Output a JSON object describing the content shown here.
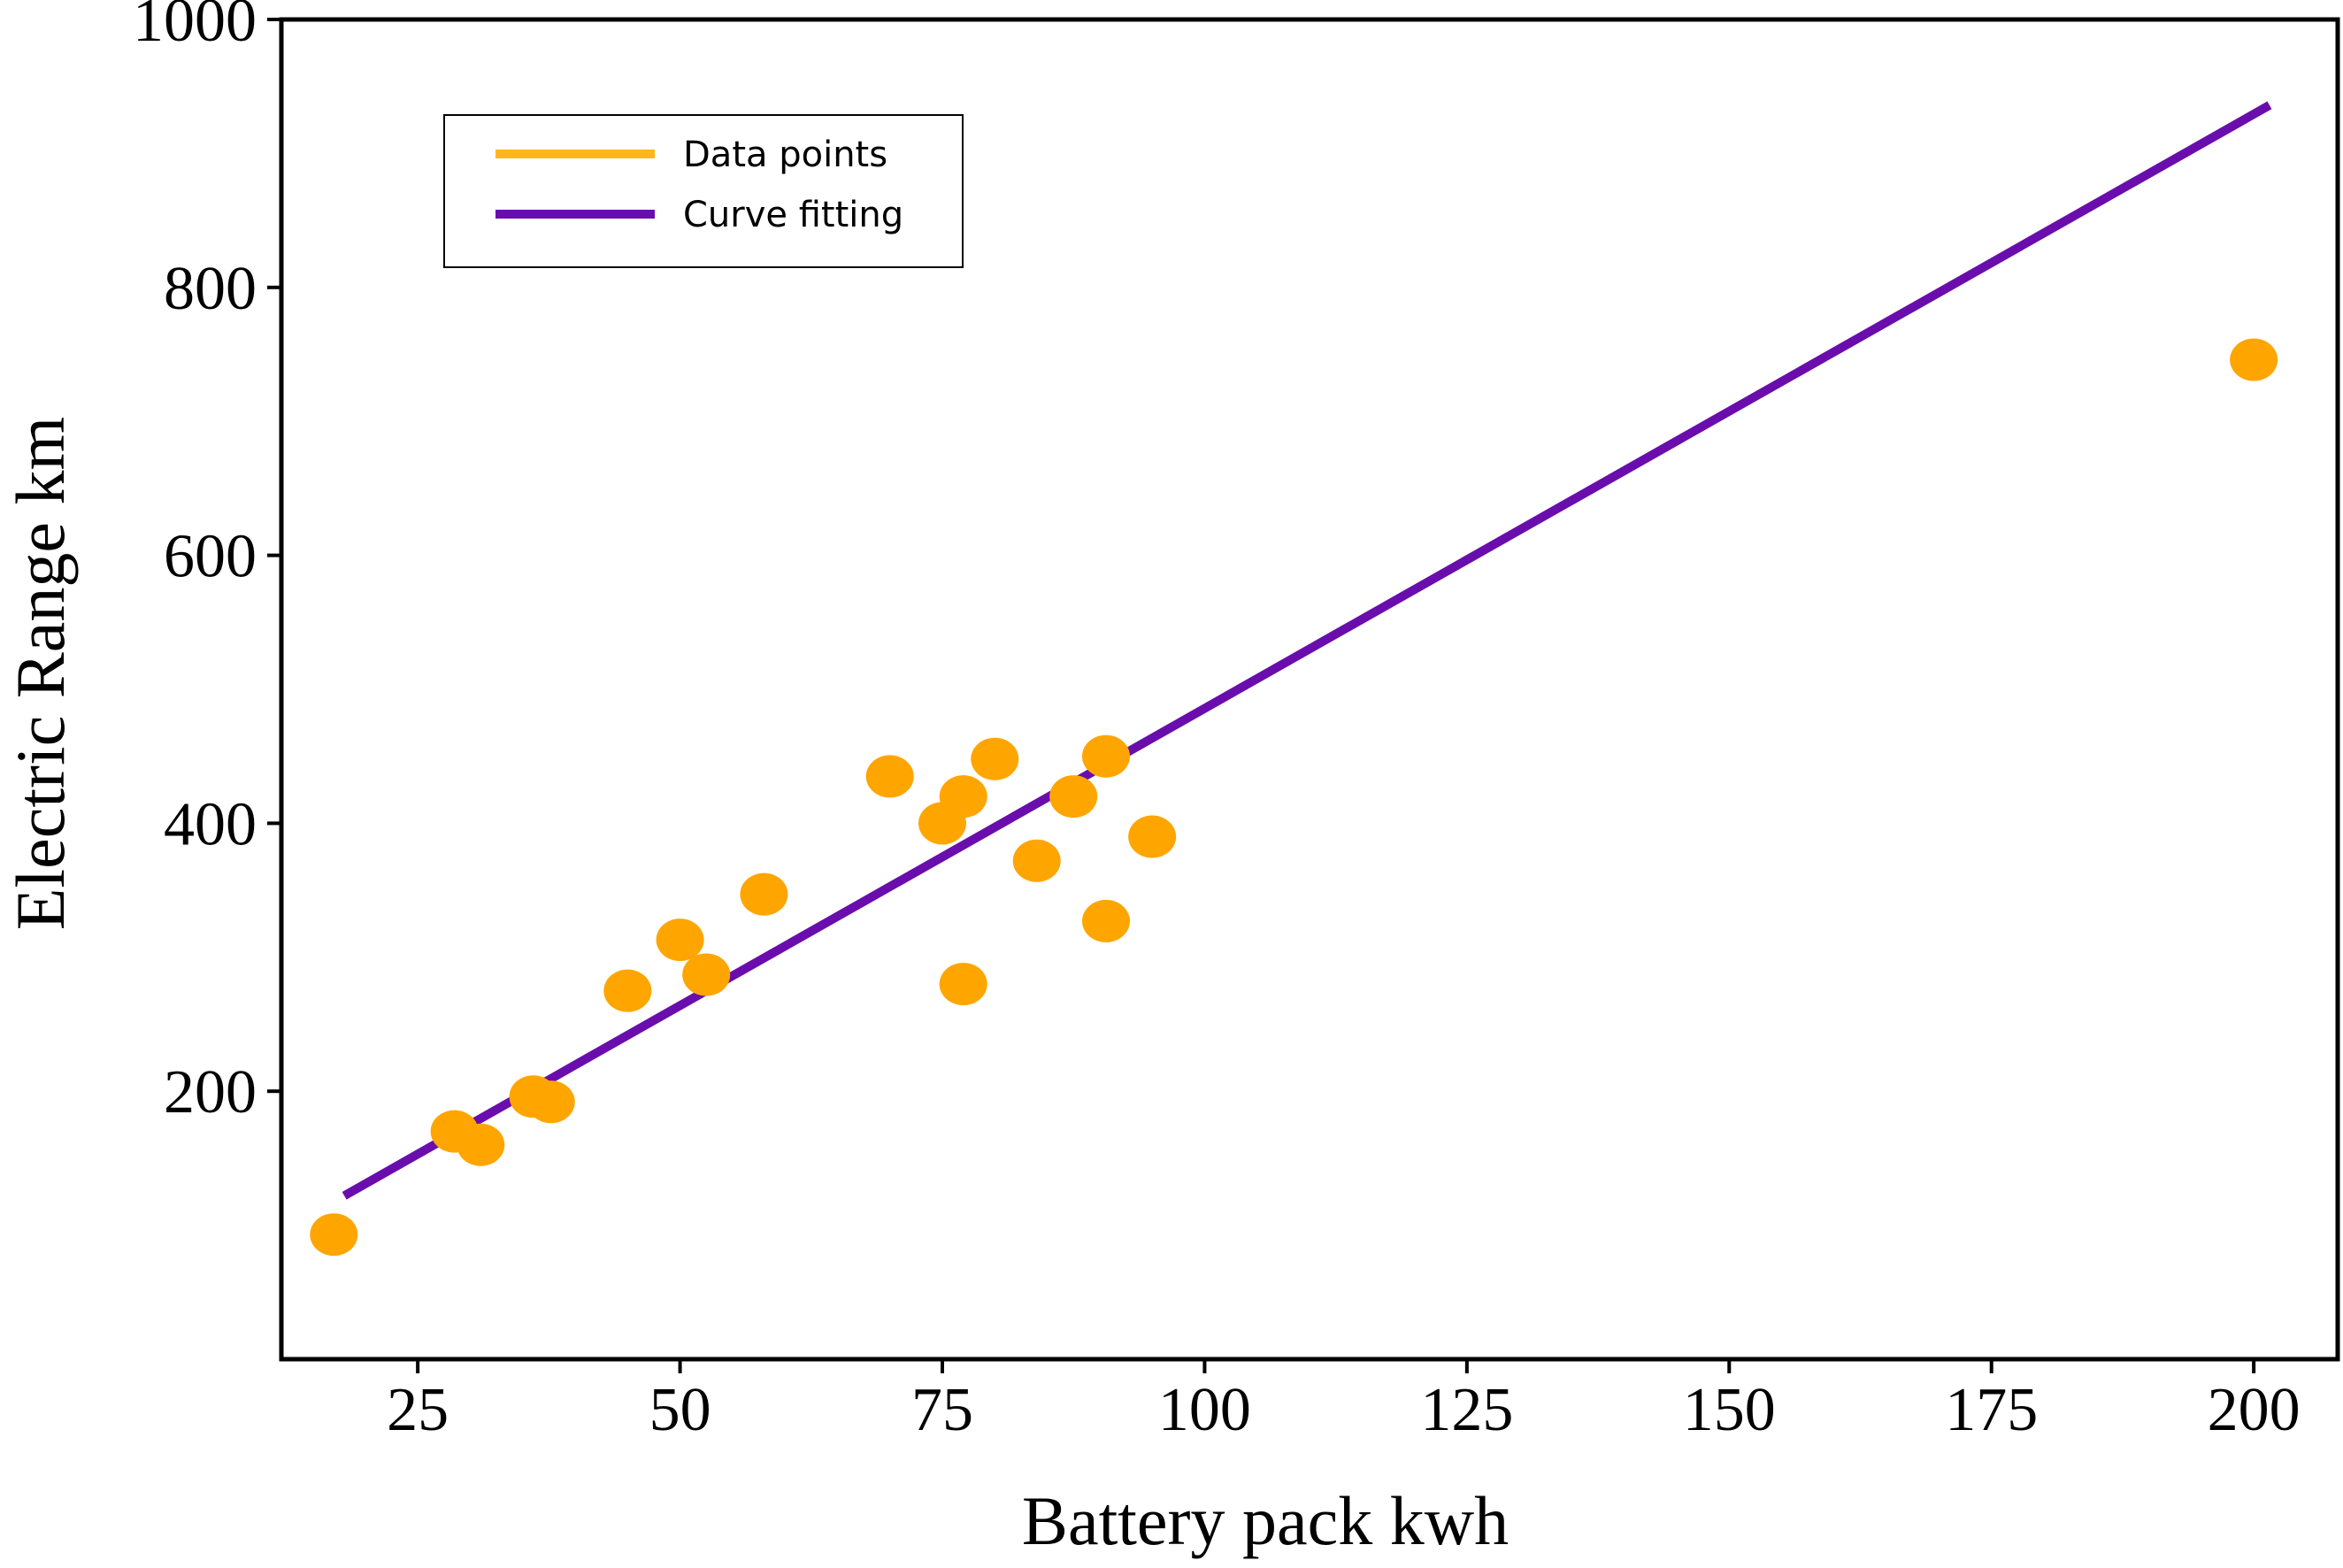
{
  "chart_data": {
    "type": "scatter",
    "xlabel": "Battery pack kwh",
    "ylabel": "Electric Range km",
    "xlim": [
      12,
      208
    ],
    "ylim": [
      0,
      1000
    ],
    "x_ticks": [
      25,
      50,
      75,
      100,
      125,
      150,
      175,
      200
    ],
    "y_ticks": [
      200,
      400,
      600,
      800,
      1000
    ],
    "grid": false,
    "legend_position": "top-left",
    "series": [
      {
        "name": "Data points",
        "mark": "point",
        "color": "#FFA500",
        "points": [
          {
            "x": 17,
            "y": 93
          },
          {
            "x": 28.5,
            "y": 170
          },
          {
            "x": 31,
            "y": 160
          },
          {
            "x": 36,
            "y": 196
          },
          {
            "x": 37.7,
            "y": 192
          },
          {
            "x": 45,
            "y": 275
          },
          {
            "x": 50,
            "y": 313
          },
          {
            "x": 52.5,
            "y": 287
          },
          {
            "x": 58,
            "y": 347
          },
          {
            "x": 70,
            "y": 435
          },
          {
            "x": 75,
            "y": 400
          },
          {
            "x": 77,
            "y": 420
          },
          {
            "x": 77,
            "y": 280
          },
          {
            "x": 80,
            "y": 448
          },
          {
            "x": 84,
            "y": 372
          },
          {
            "x": 87.5,
            "y": 420
          },
          {
            "x": 90.6,
            "y": 450
          },
          {
            "x": 90.6,
            "y": 327
          },
          {
            "x": 95,
            "y": 390
          },
          {
            "x": 200,
            "y": 746
          }
        ]
      },
      {
        "name": "Curve fitting",
        "mark": "line",
        "color": "#6A0DAD",
        "points": [
          {
            "x": 18,
            "y": 122
          },
          {
            "x": 201.5,
            "y": 936
          }
        ]
      }
    ]
  }
}
